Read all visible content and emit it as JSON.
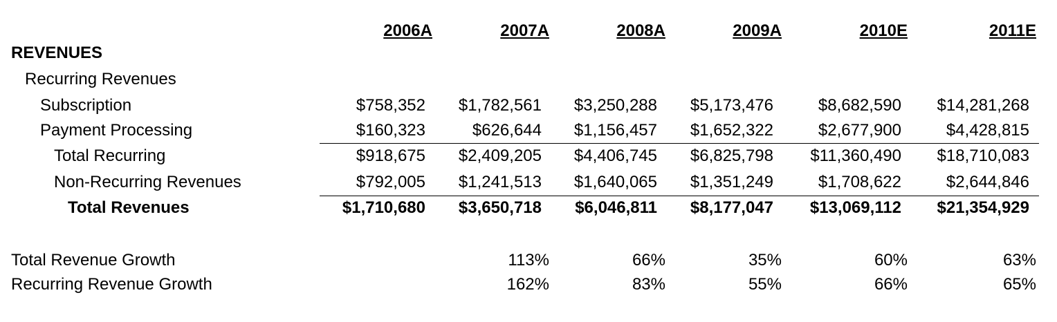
{
  "table": {
    "columns": [
      "2006A",
      "2007A",
      "2008A",
      "2009A",
      "2010E",
      "2011E"
    ],
    "rows": [
      {
        "label": "REVENUES",
        "values": []
      },
      {
        "label": "Recurring Revenues",
        "values": []
      },
      {
        "label": "Subscription",
        "values": [
          "$758,352",
          "$1,782,561",
          "$3,250,288",
          "$5,173,476",
          "$8,682,590",
          "$14,281,268"
        ]
      },
      {
        "label": "Payment Processing",
        "values": [
          "$160,323",
          "$626,644",
          "$1,156,457",
          "$1,652,322",
          "$2,677,900",
          "$4,428,815"
        ]
      },
      {
        "label": "Total Recurring",
        "values": [
          "$918,675",
          "$2,409,205",
          "$4,406,745",
          "$6,825,798",
          "$11,360,490",
          "$18,710,083"
        ]
      },
      {
        "label": "Non-Recurring Revenues",
        "values": [
          "$792,005",
          "$1,241,513",
          "$1,640,065",
          "$1,351,249",
          "$1,708,622",
          "$2,644,846"
        ]
      },
      {
        "label": "Total Revenues",
        "values": [
          "$1,710,680",
          "$3,650,718",
          "$6,046,811",
          "$8,177,047",
          "$13,069,112",
          "$21,354,929"
        ]
      }
    ],
    "growth": [
      {
        "label": "Total Revenue Growth",
        "values": [
          "113%",
          "66%",
          "35%",
          "60%",
          "63%"
        ]
      },
      {
        "label": "Recurring Revenue Growth",
        "values": [
          "162%",
          "83%",
          "55%",
          "66%",
          "65%"
        ]
      }
    ]
  }
}
